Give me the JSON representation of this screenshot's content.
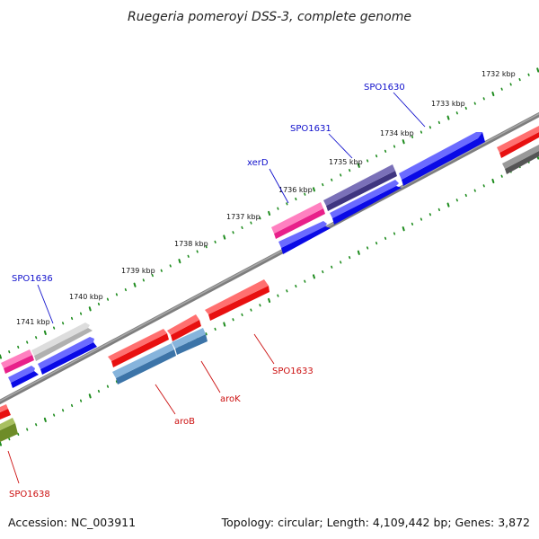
{
  "title": "Ruegeria pomeroyi DSS-3, complete genome",
  "footer": {
    "accession": "Accession: NC_003911",
    "summary": "Topology: circular; Length: 4,109,442 bp; Genes: 3,872"
  },
  "colors": {
    "backbone": "#8a8a8a",
    "tick": "#1e8c1e",
    "label_forward": "#1010cc",
    "label_reverse": "#cc1010",
    "forward_blue": "#0a0ae6",
    "forward_purple": "#4a3f8c",
    "forward_pink": "#e8208a",
    "forward_gray": "#b8b8b8",
    "reverse_red": "#f01010",
    "reverse_steel": "#4a84b8",
    "reverse_olive": "#6e8c28",
    "reverse_darkgray": "#666666"
  },
  "ruler_labels": [
    "1732 kbp",
    "1733 kbp",
    "1734 kbp",
    "1735 kbp",
    "1736 kbp",
    "1737 kbp",
    "1738 kbp",
    "1739 kbp",
    "1740 kbp",
    "1741 kbp"
  ],
  "gene_labels": {
    "spo1630": "SPO1630",
    "spo1631": "SPO1631",
    "xerd": "xerD",
    "spo1636": "SPO1636",
    "spo1633": "SPO1633",
    "arok": "aroK",
    "arob": "aroB",
    "spo1638": "SPO1638"
  }
}
